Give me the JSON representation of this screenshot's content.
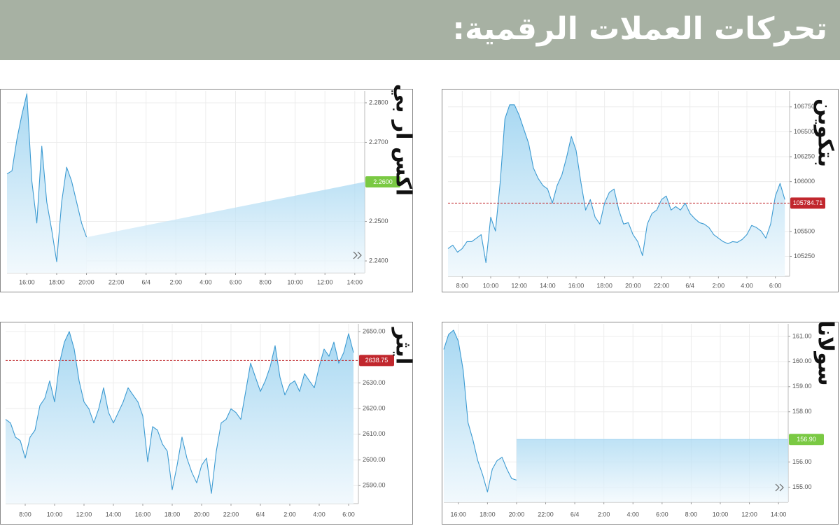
{
  "header": {
    "title": "تحركات العملات الرقمية:"
  },
  "chart_data": [
    {
      "type": "line",
      "title": "اكس ار بي",
      "x": [
        "14:40",
        "15:00",
        "15:20",
        "15:40",
        "16:00",
        "16:20",
        "16:40",
        "17:00",
        "17:20",
        "17:40",
        "18:00",
        "18:20",
        "18:40",
        "19:00",
        "19:20",
        "19:40",
        "20:00",
        "20:20",
        "20:40",
        "21:00",
        "21:20",
        "21:40",
        "22:00",
        "22:20",
        "22:40",
        "23:00",
        "23:20",
        "23:40",
        "6/4",
        "0:20",
        "0:40",
        "1:00",
        "1:20",
        "1:40",
        "2:00",
        "2:20",
        "2:40",
        "3:00",
        "3:20",
        "3:40",
        "4:00",
        "4:20",
        "4:40",
        "5:00",
        "5:20",
        "5:40",
        "6:00",
        "6:20",
        "6:40",
        "7:00",
        "7:20",
        "7:40",
        "8:00",
        "8:20",
        "8:40",
        "9:00",
        "9:20",
        "9:40",
        "10:00",
        "10:20",
        "10:40",
        "11:00",
        "11:20",
        "11:40",
        "12:00",
        "12:20",
        "12:40",
        "13:00",
        "13:20",
        "13:40",
        "14:00",
        "14:20",
        "14:40"
      ],
      "series": [
        {
          "color": "#3d9bd2",
          "values": [
            2.262,
            2.2628,
            2.2708,
            2.277,
            2.2823,
            2.2602,
            2.2496,
            2.269,
            2.2549,
            2.2478,
            2.2398,
            2.2549,
            2.2637,
            2.2602,
            2.2549,
            2.2496,
            2.246,
            null,
            null,
            null,
            null,
            null,
            null,
            null,
            null,
            null,
            null,
            null,
            null,
            null,
            null,
            null,
            null,
            null,
            null,
            null,
            null,
            null,
            null,
            null,
            null,
            null,
            null,
            null,
            null,
            null,
            null,
            null,
            null,
            null,
            null,
            null,
            null,
            null,
            null,
            null,
            null,
            null,
            null,
            null,
            null,
            null,
            null,
            null,
            null,
            null,
            null,
            null,
            null,
            null,
            null,
            null,
            null
          ]
        }
      ],
      "ylim": [
        2.237,
        2.283
      ],
      "yticks": [
        {
          "value": 2.24,
          "label": "2.2400"
        },
        {
          "value": 2.25,
          "label": "2.2500"
        },
        {
          "value": 2.27,
          "label": "2.2700"
        },
        {
          "value": 2.28,
          "label": "2.2800"
        }
      ],
      "xticks": [
        "16:00",
        "18:00",
        "20:00",
        "22:00",
        "6/4",
        "2:00",
        "4:00",
        "6:00",
        "8:00",
        "10:00",
        "12:00",
        "14:00"
      ],
      "current": {
        "value": 2.26,
        "label": "2.2600"
      },
      "current_color": "#7ac943",
      "current_line": false,
      "gap_fill": "ramp",
      "grid": true
    },
    {
      "type": "line",
      "title": "بتكوين",
      "x": [
        "7:00",
        "7:20",
        "7:40",
        "8:00",
        "8:20",
        "8:40",
        "9:00",
        "9:20",
        "9:40",
        "10:00",
        "10:20",
        "10:40",
        "11:00",
        "11:20",
        "11:40",
        "12:00",
        "12:20",
        "12:40",
        "13:00",
        "13:20",
        "13:40",
        "14:00",
        "14:20",
        "14:40",
        "15:00",
        "15:20",
        "15:40",
        "16:00",
        "16:20",
        "16:40",
        "17:00",
        "17:20",
        "17:40",
        "18:00",
        "18:20",
        "18:40",
        "19:00",
        "19:20",
        "19:40",
        "20:00",
        "20:20",
        "20:40",
        "21:00",
        "21:20",
        "21:40",
        "22:00",
        "22:20",
        "22:40",
        "23:00",
        "23:20",
        "23:40",
        "6/4",
        "0:20",
        "0:40",
        "1:00",
        "1:20",
        "1:40",
        "2:00",
        "2:20",
        "2:40",
        "3:00",
        "3:20",
        "3:40",
        "4:00",
        "4:20",
        "4:40",
        "5:00",
        "5:20",
        "5:40",
        "6:00",
        "6:20",
        "6:40",
        "7:00"
      ],
      "series": [
        {
          "color": "#3d9bd2",
          "values": [
            105328,
            105363,
            105292,
            105328,
            105398,
            105398,
            105433,
            105468,
            105187,
            105644,
            105504,
            105996,
            106630,
            106771,
            106771,
            106665,
            106525,
            106384,
            106137,
            106032,
            105961,
            105926,
            105785,
            105961,
            106067,
            106243,
            106454,
            106313,
            105996,
            105715,
            105820,
            105644,
            105574,
            105785,
            105891,
            105926,
            105715,
            105574,
            105588,
            105468,
            105398,
            105257,
            105574,
            105680,
            105715,
            105820,
            105856,
            105715,
            105750,
            105715,
            105785,
            105680,
            105630,
            105588,
            105574,
            105539,
            105468,
            105433,
            105398,
            105377,
            105398,
            105391,
            105419,
            105468,
            105560,
            105539,
            105504,
            105433,
            105574,
            105856,
            105982,
            105820,
            null
          ]
        }
      ],
      "ylim": [
        105050,
        106910
      ],
      "yticks": [
        105250,
        105500,
        106000,
        106250,
        106500,
        106750
      ],
      "xticks": [
        "8:00",
        "10:00",
        "12:00",
        "14:00",
        "16:00",
        "18:00",
        "20:00",
        "22:00",
        "6/4",
        "2:00",
        "4:00",
        "6:00"
      ],
      "current": {
        "value": 105784.71,
        "label": "105784.71"
      },
      "current_color": "#c1272d",
      "current_line": true,
      "grid": true
    },
    {
      "type": "line",
      "title": "ايثر",
      "x": [
        "6:40",
        "7:00",
        "7:20",
        "7:40",
        "8:00",
        "8:20",
        "8:40",
        "9:00",
        "9:20",
        "9:40",
        "10:00",
        "10:20",
        "10:40",
        "11:00",
        "11:20",
        "11:40",
        "12:00",
        "12:20",
        "12:40",
        "13:00",
        "13:20",
        "13:40",
        "14:00",
        "14:20",
        "14:40",
        "15:00",
        "15:20",
        "15:40",
        "16:00",
        "16:20",
        "16:40",
        "17:00",
        "17:20",
        "17:40",
        "18:00",
        "18:20",
        "18:40",
        "19:00",
        "19:20",
        "19:40",
        "20:00",
        "20:20",
        "20:40",
        "21:00",
        "21:20",
        "21:40",
        "22:00",
        "22:20",
        "22:40",
        "23:00",
        "23:20",
        "23:40",
        "6/4",
        "0:20",
        "0:40",
        "1:00",
        "1:20",
        "1:40",
        "2:00",
        "2:20",
        "2:40",
        "3:00",
        "3:20",
        "3:40",
        "4:00",
        "4:20",
        "4:40",
        "5:00",
        "5:20",
        "5:40",
        "6:00",
        "6:20",
        "6:40"
      ],
      "series": [
        {
          "color": "#3d9bd2",
          "values": [
            2615.8,
            2614.4,
            2608.9,
            2607.5,
            2600.7,
            2608.9,
            2611.6,
            2621.2,
            2624.0,
            2630.8,
            2622.6,
            2637.7,
            2645.9,
            2650.0,
            2643.2,
            2630.8,
            2622.6,
            2619.9,
            2614.4,
            2619.9,
            2628.1,
            2618.5,
            2614.4,
            2618.5,
            2622.6,
            2628.1,
            2625.3,
            2622.6,
            2617.1,
            2599.3,
            2613.0,
            2611.6,
            2606.2,
            2603.4,
            2588.4,
            2597.9,
            2608.9,
            2600.7,
            2595.2,
            2591.1,
            2597.9,
            2600.7,
            2587.0,
            2603.4,
            2614.4,
            2615.8,
            2619.9,
            2618.5,
            2615.8,
            2626.7,
            2637.7,
            2632.2,
            2626.7,
            2630.8,
            2636.3,
            2644.5,
            2632.2,
            2625.3,
            2629.5,
            2630.8,
            2626.7,
            2633.6,
            2630.8,
            2628.1,
            2636.3,
            2643.2,
            2640.4,
            2645.9,
            2637.7,
            2641.8,
            2649.2,
            2641.8,
            null
          ]
        }
      ],
      "ylim": [
        2583,
        2653
      ],
      "yticks": [
        {
          "value": 2590,
          "label": "2590.00"
        },
        {
          "value": 2600,
          "label": "2600.00"
        },
        {
          "value": 2610,
          "label": "2610.00"
        },
        {
          "value": 2620,
          "label": "2620.00"
        },
        {
          "value": 2630,
          "label": "2630.00"
        },
        {
          "value": 2650,
          "label": "2650.00"
        }
      ],
      "xticks": [
        "8:00",
        "10:00",
        "12:00",
        "14:00",
        "16:00",
        "18:00",
        "20:00",
        "22:00",
        "6/4",
        "2:00",
        "4:00",
        "6:00"
      ],
      "current": {
        "value": 2638.75,
        "label": "2638.75"
      },
      "current_color": "#c1272d",
      "current_line": true,
      "grid": true
    },
    {
      "type": "line",
      "title": "سولانا",
      "x": [
        "15:00",
        "15:20",
        "15:40",
        "16:00",
        "16:20",
        "16:40",
        "17:00",
        "17:20",
        "17:40",
        "18:00",
        "18:20",
        "18:40",
        "19:00",
        "19:20",
        "19:40",
        "20:00",
        "20:20",
        "20:40",
        "21:00",
        "21:20",
        "21:40",
        "22:00",
        "22:20",
        "22:40",
        "23:00",
        "23:20",
        "23:40",
        "6/4",
        "0:20",
        "0:40",
        "1:00",
        "1:20",
        "1:40",
        "2:00",
        "2:20",
        "2:40",
        "3:00",
        "3:20",
        "3:40",
        "4:00",
        "4:20",
        "4:40",
        "5:00",
        "5:20",
        "5:40",
        "6:00",
        "6:20",
        "6:40",
        "7:00",
        "7:20",
        "7:40",
        "8:00",
        "8:20",
        "8:40",
        "9:00",
        "9:20",
        "9:40",
        "10:00",
        "10:20",
        "10:40",
        "11:00",
        "11:20",
        "11:40",
        "12:00",
        "12:20",
        "12:40",
        "13:00",
        "13:20",
        "13:40",
        "14:00",
        "14:20",
        "14:40"
      ],
      "series": [
        {
          "color": "#3d9bd2",
          "values": [
            160.48,
            161.08,
            161.25,
            160.81,
            159.65,
            157.57,
            156.88,
            156.06,
            155.5,
            154.81,
            155.72,
            156.06,
            156.19,
            155.72,
            155.34,
            155.28,
            null,
            null,
            null,
            null,
            null,
            null,
            null,
            null,
            null,
            null,
            null,
            null,
            null,
            null,
            null,
            null,
            null,
            null,
            null,
            null,
            null,
            null,
            null,
            null,
            null,
            null,
            null,
            null,
            null,
            null,
            null,
            null,
            null,
            null,
            null,
            null,
            null,
            null,
            null,
            null,
            null,
            null,
            null,
            null,
            null,
            null,
            null,
            null,
            null,
            null,
            null,
            null,
            null,
            null,
            null,
            null
          ]
        }
      ],
      "ylim": [
        154.4,
        161.5
      ],
      "yticks": [
        {
          "value": 155,
          "label": "155.00"
        },
        {
          "value": 156,
          "label": "156.00"
        },
        {
          "value": 158,
          "label": "158.00"
        },
        {
          "value": 159,
          "label": "159.00"
        },
        {
          "value": 160,
          "label": "160.00"
        },
        {
          "value": 161,
          "label": "161.00"
        }
      ],
      "xticks": [
        "16:00",
        "18:00",
        "20:00",
        "22:00",
        "6/4",
        "2:00",
        "4:00",
        "6:00",
        "8:00",
        "10:00",
        "12:00",
        "14:00"
      ],
      "current": {
        "value": 156.9,
        "label": "156.90"
      },
      "current_color": "#7ac943",
      "current_line": false,
      "gap_fill": "step",
      "grid": true
    }
  ]
}
